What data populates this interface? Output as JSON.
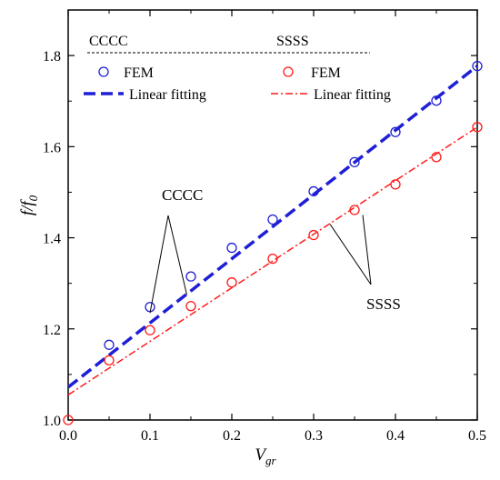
{
  "chart_data": {
    "type": "scatter",
    "title": "",
    "xlabel": {
      "main": "V",
      "sub": "gr"
    },
    "ylabel": {
      "main": "f/f",
      "sub": "0"
    },
    "xlim": [
      0.0,
      0.5
    ],
    "ylim": [
      1.0,
      1.9
    ],
    "xticks": [
      0.0,
      0.1,
      0.2,
      0.3,
      0.4,
      0.5
    ],
    "xtick_labels": [
      "0.0",
      "0.1",
      "0.2",
      "0.3",
      "0.4",
      "0.5"
    ],
    "yticks": [
      1.0,
      1.2,
      1.4,
      1.6,
      1.8
    ],
    "ytick_labels": [
      "1.0",
      "1.2",
      "1.4",
      "1.6",
      "1.8"
    ],
    "grid": false,
    "legend_placement": "top-left",
    "legend": {
      "group_cccc": "CCCC",
      "group_ssss": "SSSS",
      "fem_label": "FEM",
      "fit_label": "Linear fitting"
    },
    "series": [
      {
        "group": "CCCC",
        "kind": "FEM",
        "marker": "circle",
        "color": "#1f1fd6",
        "x": [
          0.05,
          0.1,
          0.15,
          0.2,
          0.25,
          0.3,
          0.35,
          0.4,
          0.45,
          0.5
        ],
        "y": [
          1.165,
          1.248,
          1.315,
          1.378,
          1.44,
          1.502,
          1.566,
          1.632,
          1.701,
          1.777
        ]
      },
      {
        "group": "CCCC",
        "kind": "Linear fitting",
        "line": "dashed",
        "color": "#1f1fd6",
        "x": [
          0.0,
          0.5
        ],
        "y": [
          1.072,
          1.777
        ]
      },
      {
        "group": "SSSS",
        "kind": "FEM",
        "marker": "circle",
        "color": "#ff1a1a",
        "x": [
          0.0,
          0.05,
          0.1,
          0.15,
          0.2,
          0.25,
          0.3,
          0.35,
          0.4,
          0.45,
          0.5
        ],
        "y": [
          1.0,
          1.131,
          1.197,
          1.25,
          1.302,
          1.354,
          1.406,
          1.461,
          1.517,
          1.577,
          1.643
        ]
      },
      {
        "group": "SSSS",
        "kind": "Linear fitting",
        "line": "dash-dot",
        "color": "#ff1a1a",
        "x": [
          0.0,
          0.5
        ],
        "y": [
          1.055,
          1.643
        ]
      }
    ],
    "annotations": [
      {
        "text": "CCCC",
        "pointer_targets": [
          [
            0.1,
            1.235
          ],
          [
            0.145,
            1.275
          ]
        ]
      },
      {
        "text": "SSSS",
        "pointer_targets": [
          [
            0.32,
            1.43
          ],
          [
            0.36,
            1.45
          ]
        ]
      }
    ]
  }
}
